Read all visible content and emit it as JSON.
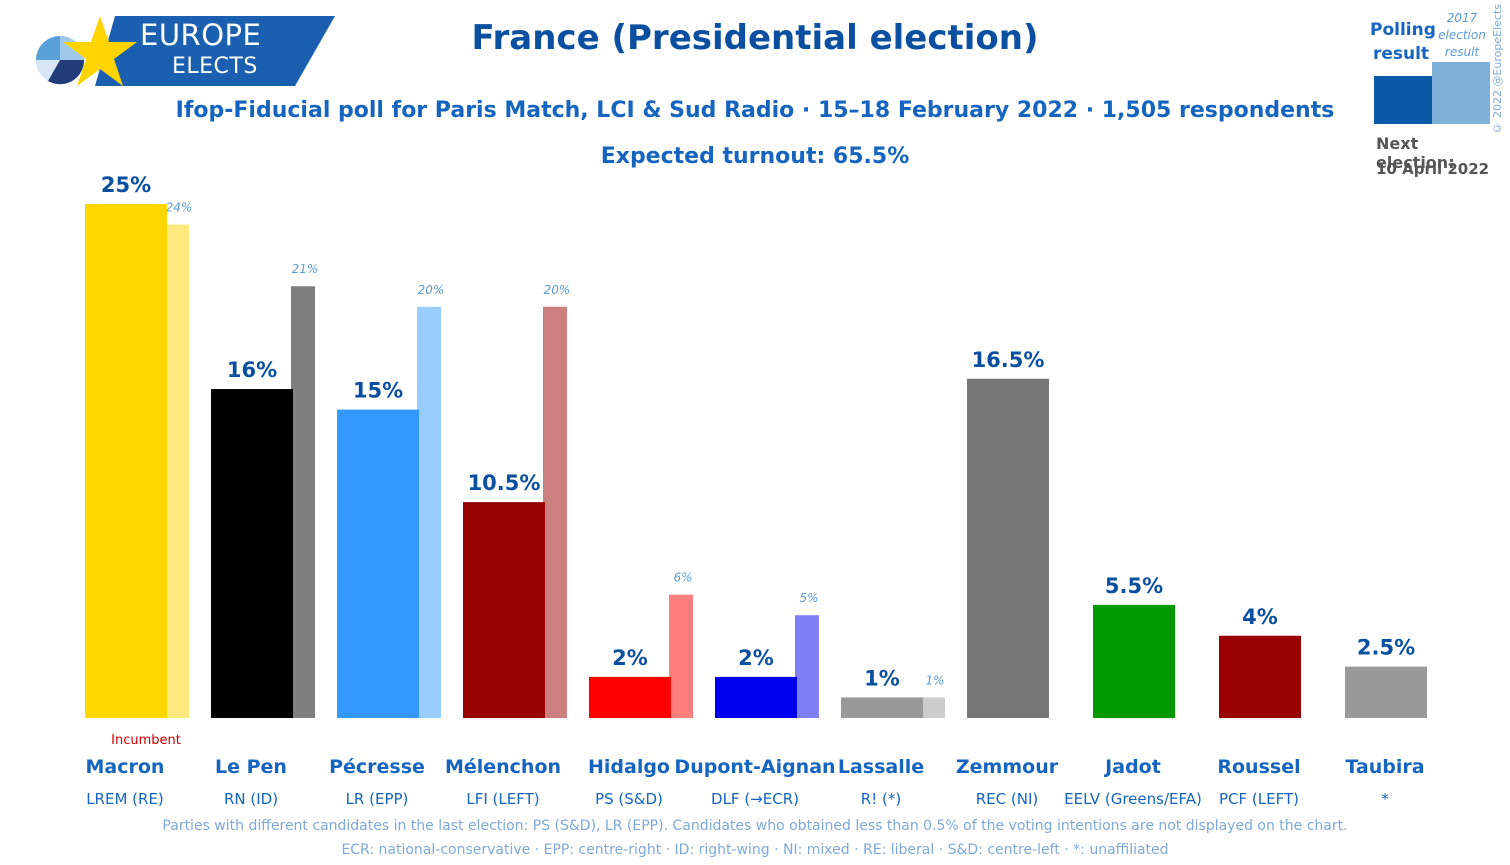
{
  "logo": {
    "line1": "EUROPE",
    "line2": "ELECTS"
  },
  "title": "France (Presidential election)",
  "subtitle": "Ifop-Fiducial poll for Paris Match, LCI & Sud Radio · 15–18 February 2022 · 1,505 respondents",
  "turnout": "Expected turnout: 65.5%",
  "legend": {
    "polling": "Polling result",
    "prev": "2017 election result",
    "next_label": "Next election:",
    "next_date": "10 April 2022"
  },
  "incumbent_label": "Incumbent",
  "copyright": "© 2022 @EuropeElects",
  "footer": {
    "line1": "Parties with different candidates in the last election: PS (S&D), LR (EPP). Candidates who obtained less than 0.5% of the voting intentions are not displayed on the chart.",
    "line2": "ECR: national-conservative · EPP: centre-right · ID: right-wing · NI: mixed · RE: liberal · S&D: centre-left · *: unaffiliated"
  },
  "chart_data": {
    "type": "bar",
    "categories": [
      "Macron",
      "Le Pen",
      "Pécresse",
      "Mélenchon",
      "Hidalgo",
      "Dupont-Aignan",
      "Lassalle",
      "Zemmour",
      "Jadot",
      "Roussel",
      "Taubira"
    ],
    "parties": [
      "LREM (RE)",
      "RN (ID)",
      "LR (EPP)",
      "LFI (LEFT)",
      "PS (S&D)",
      "DLF (→ECR)",
      "R! (*)",
      "REC (NI)",
      "EELV (Greens/EFA)",
      "PCF (LEFT)",
      "*"
    ],
    "series": [
      {
        "name": "Polling result",
        "values": [
          25,
          16,
          15,
          10.5,
          2,
          2,
          1,
          16.5,
          5.5,
          4,
          2.5
        ],
        "labels": [
          "25%",
          "16%",
          "15%",
          "10.5%",
          "2%",
          "2%",
          "1%",
          "16.5%",
          "5.5%",
          "4%",
          "2.5%"
        ]
      },
      {
        "name": "2017 election result",
        "values": [
          24,
          21,
          20,
          20,
          6,
          5,
          1,
          null,
          null,
          null,
          null
        ],
        "labels": [
          "24%",
          "21%",
          "20%",
          "20%",
          "6%",
          "5%",
          "1%",
          null,
          null,
          null,
          null
        ]
      }
    ],
    "colors": [
      "#ffd700",
      "#000000",
      "#3399ff",
      "#990000",
      "#ff0000",
      "#0000ee",
      "#999999",
      "#777777",
      "#009900",
      "#990000",
      "#999999"
    ],
    "prev_colors": [
      "#ffe97f",
      "#7f7f7f",
      "#99ccff",
      "#cc7f7f",
      "#ff7f7f",
      "#7f7ff6",
      "#cccccc",
      null,
      null,
      null,
      null
    ],
    "incumbent_index": 0,
    "ylim": [
      0,
      25
    ]
  }
}
